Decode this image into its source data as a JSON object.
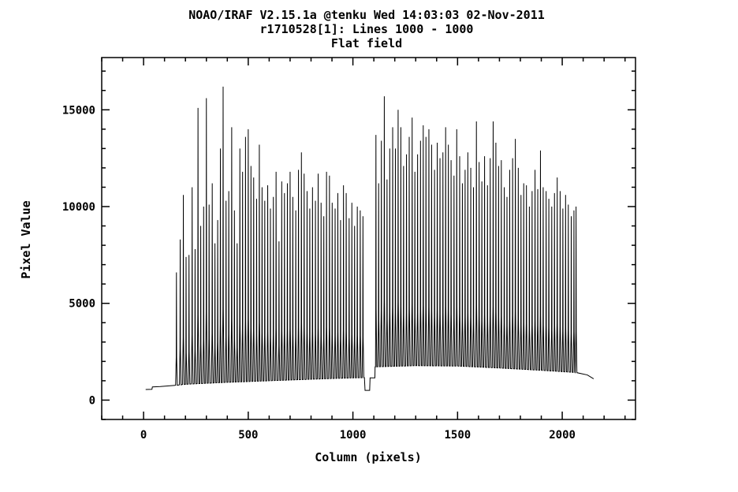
{
  "header": {
    "line1": "NOAO/IRAF V2.15.1a @tenku Wed 14:03:03 02-Nov-2011",
    "line2": "r1710528[1]: Lines 1000 - 1000",
    "line3": "Flat field"
  },
  "chart_data": {
    "type": "line",
    "title": "Flat field",
    "xlabel": "Column (pixels)",
    "ylabel": "Pixel Value",
    "xlim": [
      -200,
      2350
    ],
    "ylim": [
      -1000,
      17700
    ],
    "xticks": [
      0,
      500,
      1000,
      1500,
      2000
    ],
    "xtick_labels": [
      "0",
      "500",
      "1000",
      "1500",
      "2000"
    ],
    "yticks": [
      0,
      5000,
      10000,
      15000
    ],
    "ytick_labels": [
      "0",
      "5000",
      "10000",
      "15000"
    ],
    "grid": false,
    "series": [
      {
        "name": "",
        "baseline": [
          {
            "x": 10,
            "y": 550
          },
          {
            "x": 40,
            "y": 560
          },
          {
            "x": 42,
            "y": 680
          },
          {
            "x": 80,
            "y": 700
          },
          {
            "x": 150,
            "y": 760
          },
          {
            "x": 200,
            "y": 820
          },
          {
            "x": 400,
            "y": 920
          },
          {
            "x": 600,
            "y": 1000
          },
          {
            "x": 800,
            "y": 1080
          },
          {
            "x": 1000,
            "y": 1150
          },
          {
            "x": 1055,
            "y": 1160
          },
          {
            "x": 1058,
            "y": 500
          },
          {
            "x": 1080,
            "y": 500
          },
          {
            "x": 1082,
            "y": 1150
          },
          {
            "x": 1105,
            "y": 1150
          },
          {
            "x": 1108,
            "y": 1720
          },
          {
            "x": 1300,
            "y": 1780
          },
          {
            "x": 1500,
            "y": 1760
          },
          {
            "x": 1700,
            "y": 1660
          },
          {
            "x": 1900,
            "y": 1540
          },
          {
            "x": 2060,
            "y": 1430
          },
          {
            "x": 2120,
            "y": 1300
          },
          {
            "x": 2150,
            "y": 1100
          }
        ],
        "peaks": [
          {
            "x": 157,
            "y": 6600
          },
          {
            "x": 175,
            "y": 8300
          },
          {
            "x": 190,
            "y": 10600
          },
          {
            "x": 203,
            "y": 7400
          },
          {
            "x": 217,
            "y": 7500
          },
          {
            "x": 232,
            "y": 11000
          },
          {
            "x": 246,
            "y": 7800
          },
          {
            "x": 260,
            "y": 15100
          },
          {
            "x": 273,
            "y": 9000
          },
          {
            "x": 287,
            "y": 10000
          },
          {
            "x": 300,
            "y": 15600
          },
          {
            "x": 313,
            "y": 10100
          },
          {
            "x": 328,
            "y": 11200
          },
          {
            "x": 341,
            "y": 8100
          },
          {
            "x": 354,
            "y": 9300
          },
          {
            "x": 367,
            "y": 13000
          },
          {
            "x": 380,
            "y": 16200
          },
          {
            "x": 394,
            "y": 10300
          },
          {
            "x": 407,
            "y": 10800
          },
          {
            "x": 421,
            "y": 14100
          },
          {
            "x": 434,
            "y": 9800
          },
          {
            "x": 447,
            "y": 8100
          },
          {
            "x": 460,
            "y": 13000
          },
          {
            "x": 473,
            "y": 11800
          },
          {
            "x": 487,
            "y": 13600
          },
          {
            "x": 500,
            "y": 14000
          },
          {
            "x": 513,
            "y": 12100
          },
          {
            "x": 526,
            "y": 11500
          },
          {
            "x": 540,
            "y": 10400
          },
          {
            "x": 553,
            "y": 13200
          },
          {
            "x": 566,
            "y": 11000
          },
          {
            "x": 579,
            "y": 10300
          },
          {
            "x": 593,
            "y": 11100
          },
          {
            "x": 606,
            "y": 9900
          },
          {
            "x": 620,
            "y": 10500
          },
          {
            "x": 633,
            "y": 11800
          },
          {
            "x": 647,
            "y": 8200
          },
          {
            "x": 660,
            "y": 11300
          },
          {
            "x": 673,
            "y": 10700
          },
          {
            "x": 687,
            "y": 11200
          },
          {
            "x": 700,
            "y": 11800
          },
          {
            "x": 713,
            "y": 10500
          },
          {
            "x": 727,
            "y": 9800
          },
          {
            "x": 740,
            "y": 11900
          },
          {
            "x": 754,
            "y": 12800
          },
          {
            "x": 767,
            "y": 11700
          },
          {
            "x": 781,
            "y": 10800
          },
          {
            "x": 794,
            "y": 9900
          },
          {
            "x": 807,
            "y": 11000
          },
          {
            "x": 821,
            "y": 10300
          },
          {
            "x": 834,
            "y": 11700
          },
          {
            "x": 848,
            "y": 10200
          },
          {
            "x": 861,
            "y": 9500
          },
          {
            "x": 874,
            "y": 11800
          },
          {
            "x": 888,
            "y": 11600
          },
          {
            "x": 901,
            "y": 10200
          },
          {
            "x": 915,
            "y": 9900
          },
          {
            "x": 928,
            "y": 10700
          },
          {
            "x": 941,
            "y": 9300
          },
          {
            "x": 955,
            "y": 11100
          },
          {
            "x": 968,
            "y": 10700
          },
          {
            "x": 982,
            "y": 9400
          },
          {
            "x": 995,
            "y": 10200
          },
          {
            "x": 1008,
            "y": 9000
          },
          {
            "x": 1021,
            "y": 10000
          },
          {
            "x": 1035,
            "y": 9800
          },
          {
            "x": 1048,
            "y": 9500
          },
          {
            "x": 1110,
            "y": 13700
          },
          {
            "x": 1123,
            "y": 11200
          },
          {
            "x": 1136,
            "y": 13400
          },
          {
            "x": 1150,
            "y": 15700
          },
          {
            "x": 1163,
            "y": 11400
          },
          {
            "x": 1176,
            "y": 13000
          },
          {
            "x": 1190,
            "y": 14100
          },
          {
            "x": 1203,
            "y": 13000
          },
          {
            "x": 1216,
            "y": 15000
          },
          {
            "x": 1229,
            "y": 14100
          },
          {
            "x": 1242,
            "y": 12100
          },
          {
            "x": 1256,
            "y": 12700
          },
          {
            "x": 1269,
            "y": 13600
          },
          {
            "x": 1283,
            "y": 14600
          },
          {
            "x": 1296,
            "y": 11800
          },
          {
            "x": 1309,
            "y": 12700
          },
          {
            "x": 1323,
            "y": 13400
          },
          {
            "x": 1336,
            "y": 14200
          },
          {
            "x": 1349,
            "y": 13600
          },
          {
            "x": 1363,
            "y": 14000
          },
          {
            "x": 1376,
            "y": 13200
          },
          {
            "x": 1390,
            "y": 11900
          },
          {
            "x": 1403,
            "y": 13300
          },
          {
            "x": 1416,
            "y": 12500
          },
          {
            "x": 1430,
            "y": 12800
          },
          {
            "x": 1443,
            "y": 14100
          },
          {
            "x": 1456,
            "y": 13200
          },
          {
            "x": 1469,
            "y": 12400
          },
          {
            "x": 1483,
            "y": 11600
          },
          {
            "x": 1496,
            "y": 14000
          },
          {
            "x": 1510,
            "y": 12600
          },
          {
            "x": 1523,
            "y": 11200
          },
          {
            "x": 1536,
            "y": 11900
          },
          {
            "x": 1549,
            "y": 12800
          },
          {
            "x": 1563,
            "y": 12000
          },
          {
            "x": 1576,
            "y": 11000
          },
          {
            "x": 1590,
            "y": 14400
          },
          {
            "x": 1603,
            "y": 12300
          },
          {
            "x": 1616,
            "y": 11300
          },
          {
            "x": 1629,
            "y": 12600
          },
          {
            "x": 1643,
            "y": 11100
          },
          {
            "x": 1656,
            "y": 12500
          },
          {
            "x": 1670,
            "y": 14400
          },
          {
            "x": 1683,
            "y": 13300
          },
          {
            "x": 1696,
            "y": 12100
          },
          {
            "x": 1709,
            "y": 12400
          },
          {
            "x": 1723,
            "y": 11000
          },
          {
            "x": 1736,
            "y": 10500
          },
          {
            "x": 1749,
            "y": 11900
          },
          {
            "x": 1763,
            "y": 12500
          },
          {
            "x": 1776,
            "y": 13500
          },
          {
            "x": 1790,
            "y": 12000
          },
          {
            "x": 1803,
            "y": 10600
          },
          {
            "x": 1816,
            "y": 11200
          },
          {
            "x": 1829,
            "y": 11100
          },
          {
            "x": 1843,
            "y": 10000
          },
          {
            "x": 1856,
            "y": 10800
          },
          {
            "x": 1870,
            "y": 11900
          },
          {
            "x": 1883,
            "y": 10900
          },
          {
            "x": 1896,
            "y": 12900
          },
          {
            "x": 1909,
            "y": 11000
          },
          {
            "x": 1923,
            "y": 10800
          },
          {
            "x": 1936,
            "y": 10400
          },
          {
            "x": 1950,
            "y": 10000
          },
          {
            "x": 1963,
            "y": 10700
          },
          {
            "x": 1976,
            "y": 11500
          },
          {
            "x": 1990,
            "y": 10800
          },
          {
            "x": 2003,
            "y": 9900
          },
          {
            "x": 2016,
            "y": 10600
          },
          {
            "x": 2029,
            "y": 10100
          },
          {
            "x": 2043,
            "y": 9500
          },
          {
            "x": 2056,
            "y": 9800
          },
          {
            "x": 2066,
            "y": 10000
          }
        ]
      }
    ]
  }
}
